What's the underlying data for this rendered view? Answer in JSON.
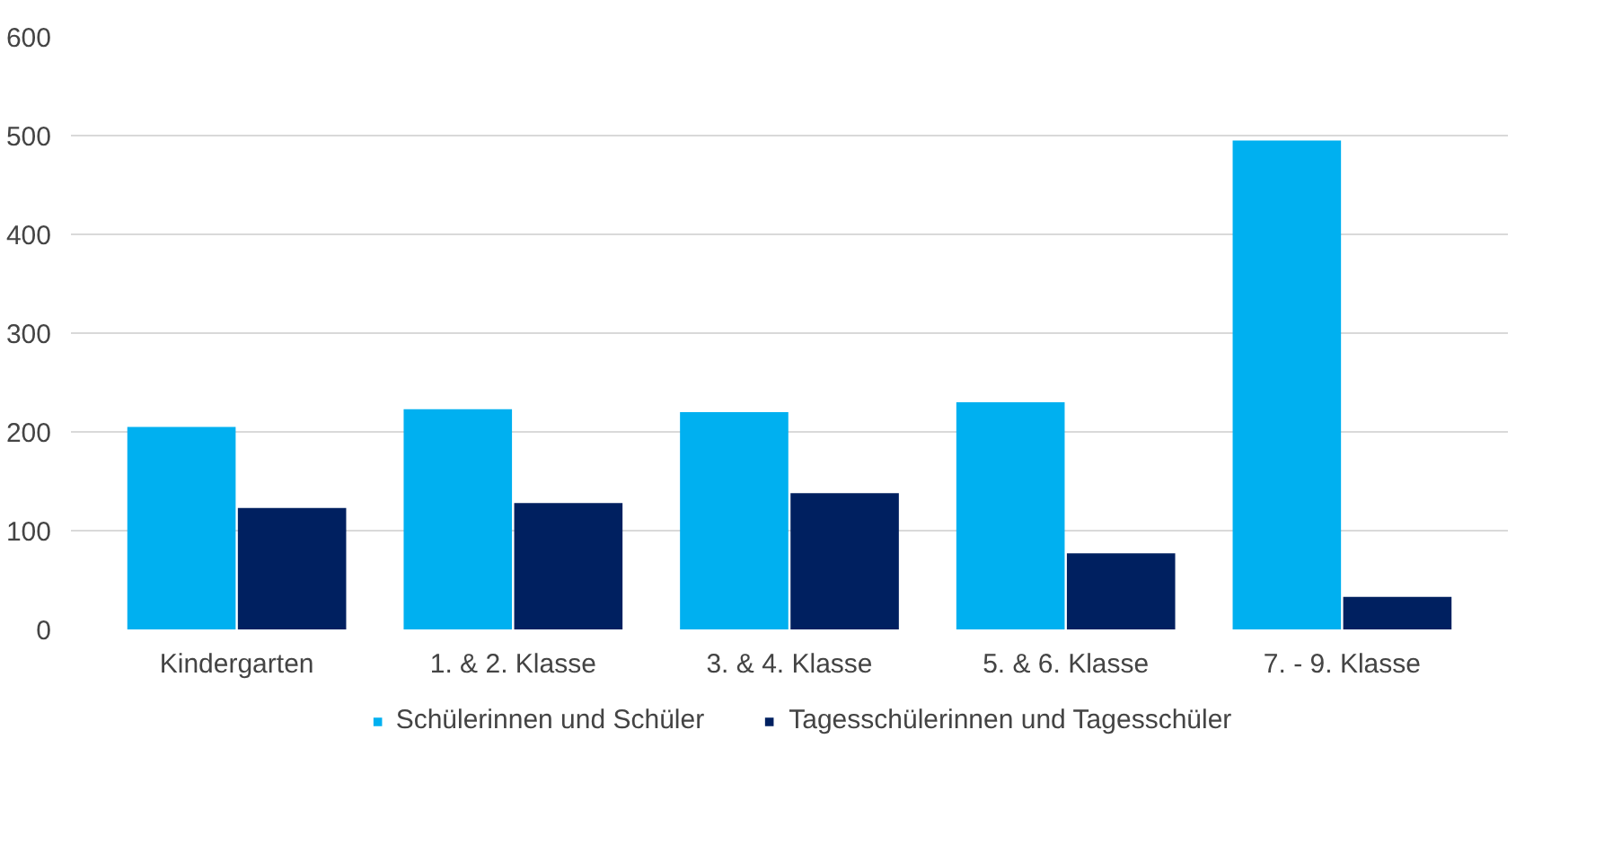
{
  "chart_data": {
    "type": "bar",
    "categories": [
      "Kindergarten",
      "1. & 2. Klasse",
      "3. & 4. Klasse",
      "5. & 6. Klasse",
      "7. - 9. Klasse"
    ],
    "series": [
      {
        "name": "Schülerinnen und Schüler",
        "color": "#00b0f0",
        "values": [
          205,
          223,
          220,
          230,
          495
        ]
      },
      {
        "name": "Tagesschülerinnen und Tagesschüler",
        "color": "#002060",
        "values": [
          123,
          128,
          138,
          77,
          33
        ]
      }
    ],
    "ylim": [
      0,
      600
    ],
    "yticks": [
      0,
      100,
      200,
      300,
      400,
      500,
      600
    ],
    "grid": "y",
    "legend": "bottom"
  }
}
